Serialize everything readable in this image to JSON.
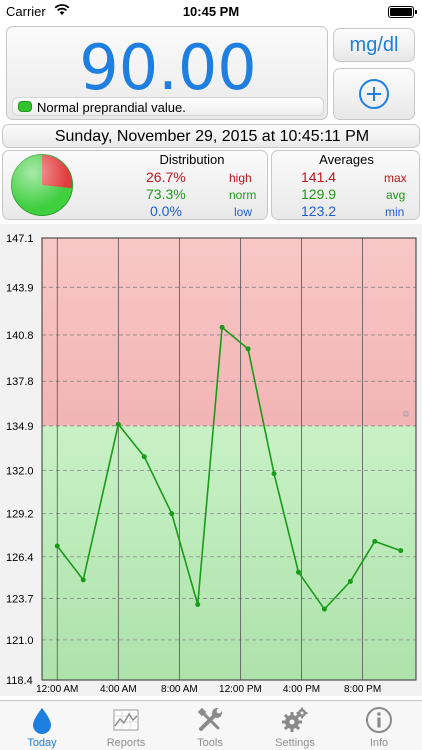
{
  "status_bar": {
    "carrier": "Carrier",
    "time": "10:45 PM",
    "battery_percent": 100
  },
  "reading": {
    "value": "90.00",
    "status_text": "Normal preprandial value.",
    "status_color": "#35c22f"
  },
  "unit_button": {
    "label": "mg/dl"
  },
  "add_button": {
    "icon": "plus-circle-icon"
  },
  "date_text": "Sunday, November 29, 2015 at 10:45:11 PM",
  "distribution": {
    "title": "Distribution",
    "rows": [
      {
        "value": "26.7%",
        "label": "high",
        "color": "#c0141c"
      },
      {
        "value": "73.3%",
        "label": "norm",
        "color": "#1f9a1a"
      },
      {
        "value": "0.0%",
        "label": "low",
        "color": "#1e5fd8"
      }
    ],
    "pie": {
      "high": 26.7,
      "norm": 73.3,
      "low": 0.0
    }
  },
  "averages": {
    "title": "Averages",
    "rows": [
      {
        "value": "141.4",
        "label": "max",
        "color": "#c0141c"
      },
      {
        "value": "129.9",
        "label": "avg",
        "color": "#1f9a1a"
      },
      {
        "value": "123.2",
        "label": "min",
        "color": "#1e5fd8"
      }
    ]
  },
  "chart_data": {
    "type": "line",
    "y_ticks": [
      "147.1",
      "143.9",
      "140.8",
      "137.8",
      "134.9",
      "132.0",
      "129.2",
      "126.4",
      "123.7",
      "121.0",
      "118.4"
    ],
    "ylim": [
      118.4,
      147.1
    ],
    "high_threshold": 134.9,
    "x_ticks": [
      "12:00 AM",
      "4:00 AM",
      "8:00 AM",
      "12:00 PM",
      "4:00 PM",
      "8:00 PM"
    ],
    "x_tick_hours": [
      0,
      4,
      8,
      12,
      16,
      20
    ],
    "xlim": [
      -1,
      23.5
    ],
    "series": [
      {
        "color": "#1a9a1a",
        "x": [
          0,
          1.7,
          4,
          5.7,
          7.5,
          9.2,
          10.8,
          12.5,
          14.2,
          15.8,
          17.5,
          19.2,
          20.8,
          22.5
        ],
        "y": [
          127.1,
          124.9,
          135.0,
          132.9,
          129.2,
          123.3,
          141.3,
          139.9,
          131.8,
          125.4,
          123.0,
          124.8,
          127.4,
          126.8
        ]
      }
    ]
  },
  "tabs": [
    {
      "label": "Today",
      "icon": "drop-icon",
      "active": true
    },
    {
      "label": "Reports",
      "icon": "chart-icon",
      "active": false
    },
    {
      "label": "Tools",
      "icon": "tools-icon",
      "active": false
    },
    {
      "label": "Settings",
      "icon": "gear-icon",
      "active": false
    },
    {
      "label": "Info",
      "icon": "info-icon",
      "active": false
    }
  ]
}
